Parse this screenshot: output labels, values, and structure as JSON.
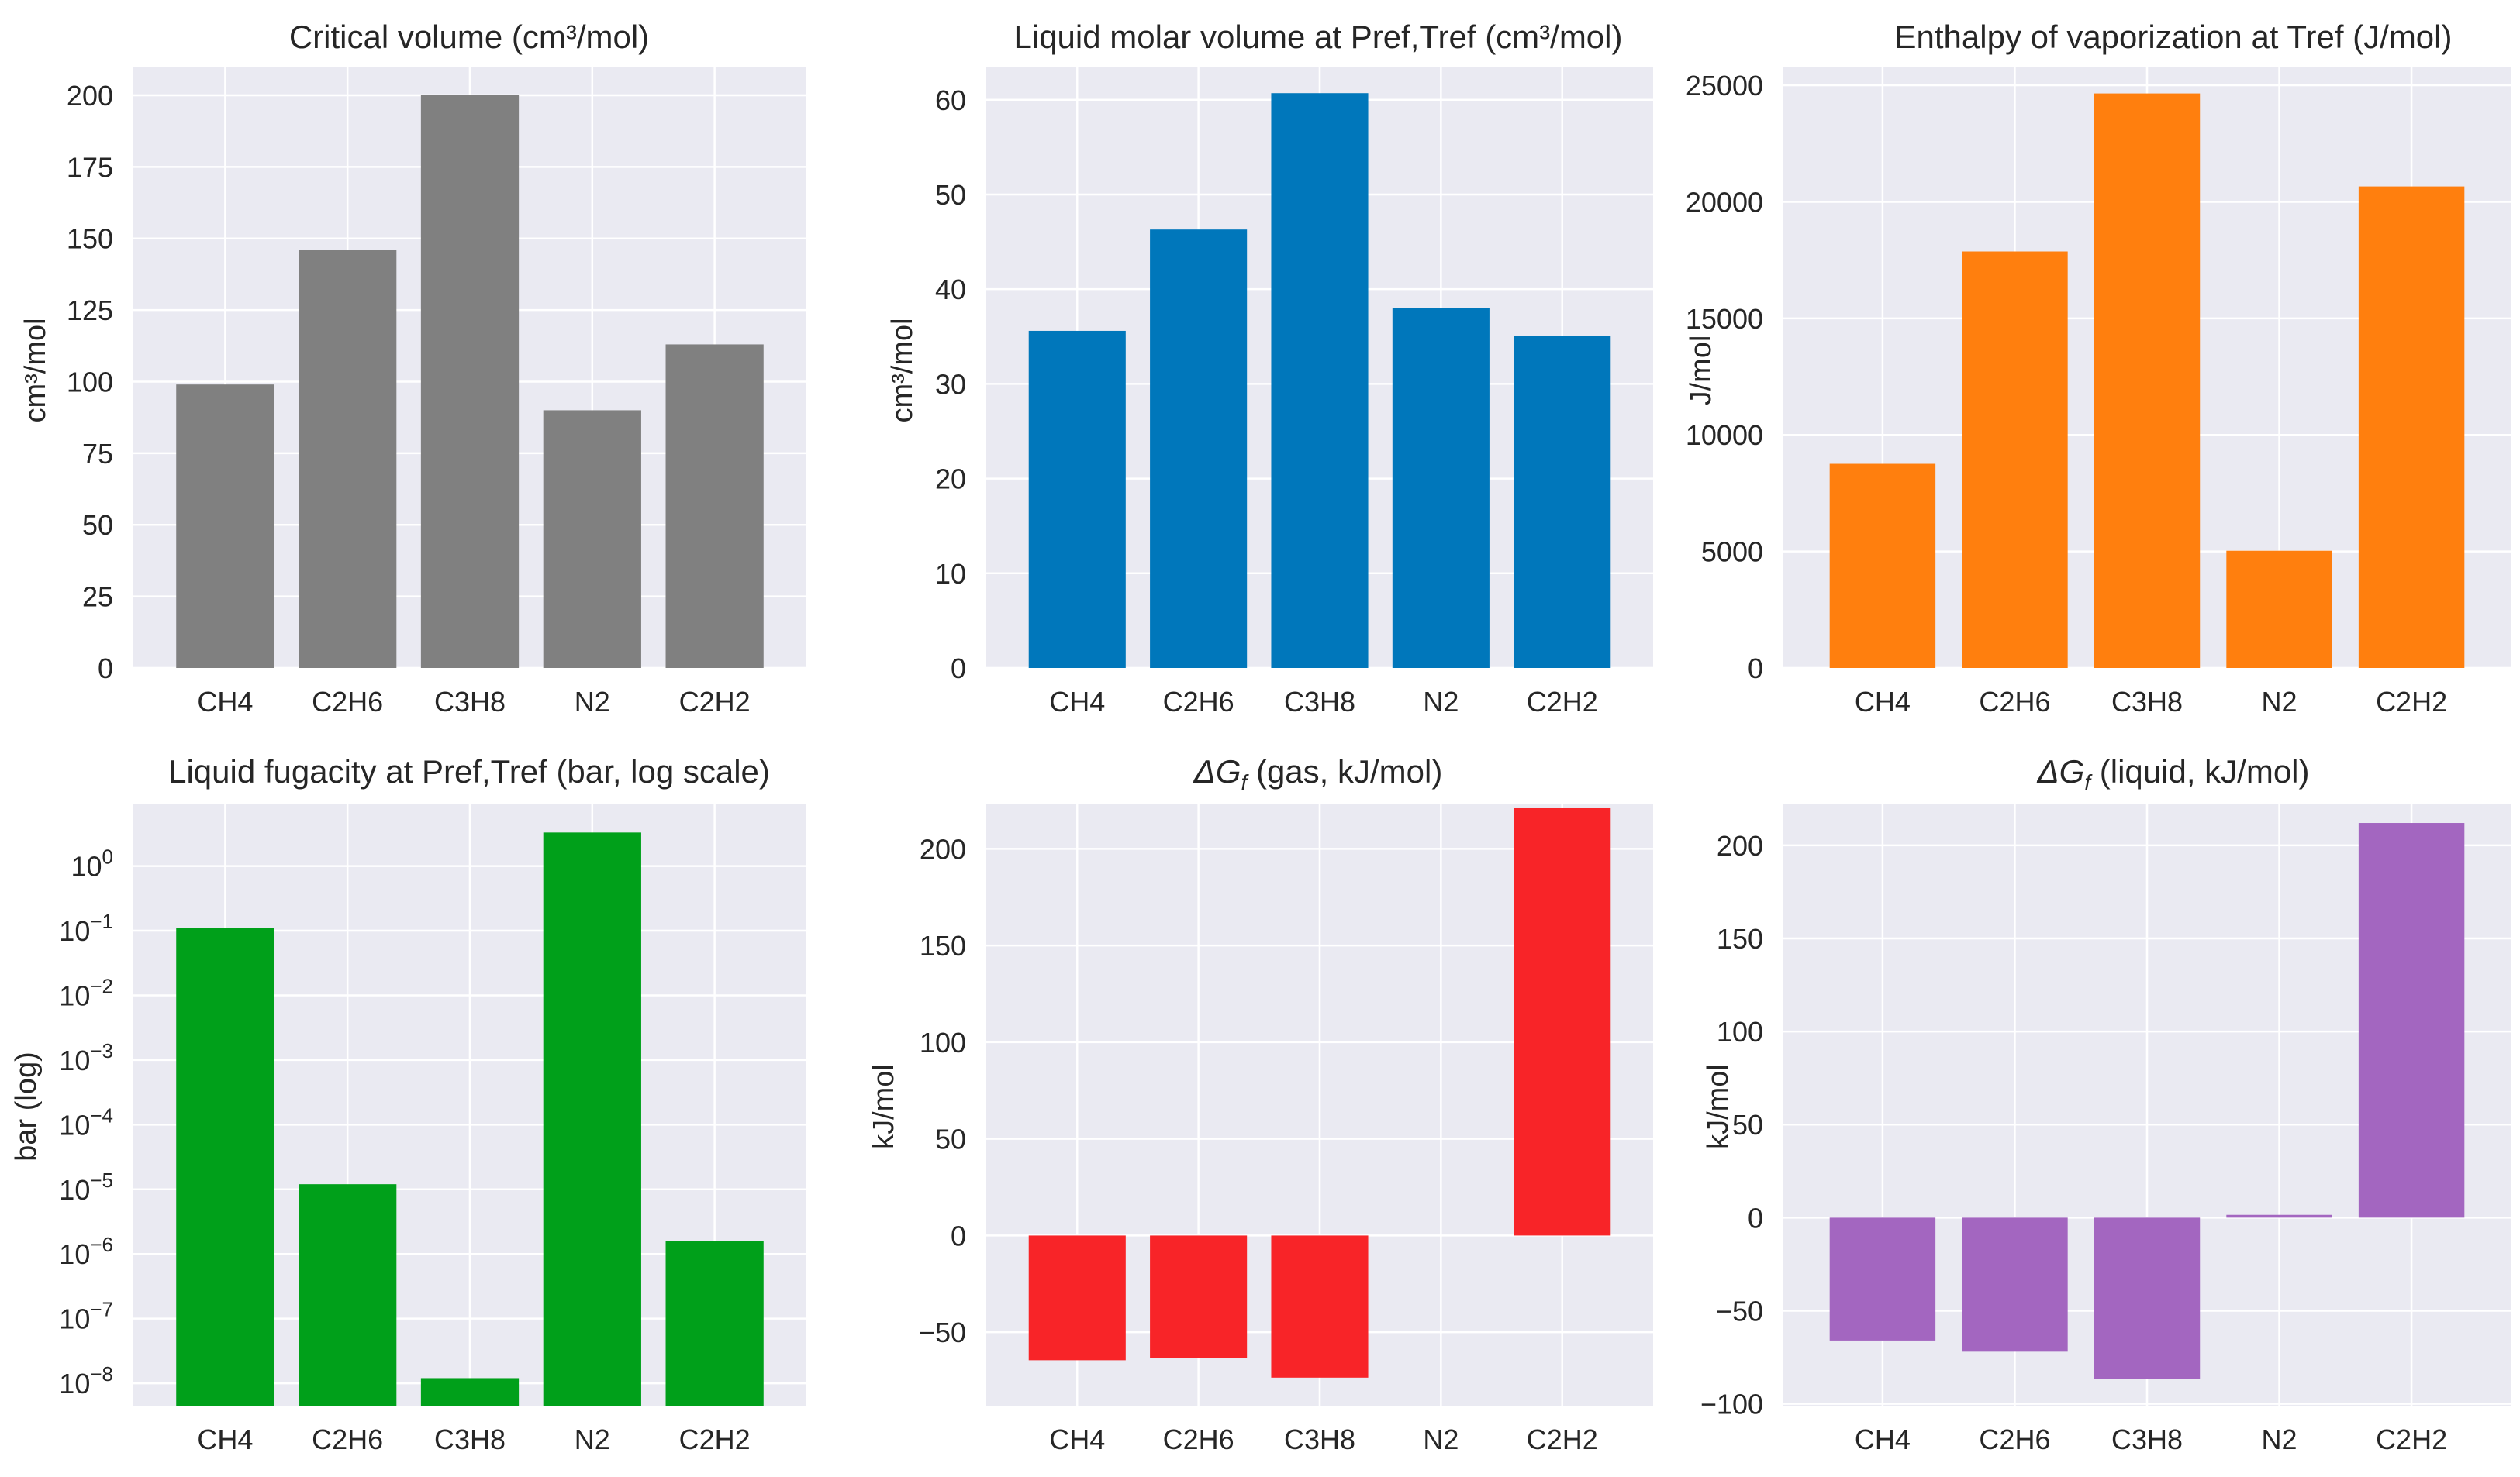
{
  "chart_data": [
    {
      "type": "bar",
      "title": "Critical volume (cm³/mol)",
      "ylabel": "cm³/mol",
      "categories": [
        "CH4",
        "C2H6",
        "C3H8",
        "N2",
        "C2H2"
      ],
      "values": [
        99,
        146,
        200,
        90,
        113
      ],
      "color": "#808080",
      "ylim": [
        0,
        210
      ],
      "yticks": [
        0,
        25,
        50,
        75,
        100,
        125,
        150,
        175,
        200
      ],
      "ytick_labels": [
        "0",
        "25",
        "50",
        "75",
        "100",
        "125",
        "150",
        "175",
        "200"
      ],
      "grid": true
    },
    {
      "type": "bar",
      "title": "Liquid molar volume at Pref,Tref (cm³/mol)",
      "ylabel": "cm³/mol",
      "categories": [
        "CH4",
        "C2H6",
        "C3H8",
        "N2",
        "C2H2"
      ],
      "values": [
        35.6,
        46.3,
        60.7,
        38,
        35.1
      ],
      "color": "#0077bb",
      "ylim": [
        0,
        63.5
      ],
      "yticks": [
        0,
        10,
        20,
        30,
        40,
        50,
        60
      ],
      "ytick_labels": [
        "0",
        "10",
        "20",
        "30",
        "40",
        "50",
        "60"
      ],
      "grid": true
    },
    {
      "type": "bar",
      "title": "Enthalpy of vaporization at Tref (J/mol)",
      "ylabel": "J/mol",
      "categories": [
        "CH4",
        "C2H6",
        "C3H8",
        "N2",
        "C2H2"
      ],
      "values": [
        8760,
        17870,
        24650,
        5030,
        20660
      ],
      "color": "#ff7f0e",
      "ylim": [
        0,
        25800
      ],
      "yticks": [
        0,
        5000,
        10000,
        15000,
        20000,
        25000
      ],
      "ytick_labels": [
        "0",
        "5000",
        "10000",
        "15000",
        "20000",
        "25000"
      ],
      "grid": true
    },
    {
      "type": "bar",
      "scale": "log",
      "title": "Liquid fugacity at Pref,Tref (bar, log scale)",
      "ylabel": "bar (log)",
      "categories": [
        "CH4",
        "C2H6",
        "C3H8",
        "N2",
        "C2H2"
      ],
      "values": [
        0.11,
        1.2e-05,
        1.2e-08,
        3.3,
        1.6e-06
      ],
      "color": "#00a01a",
      "ylim": [
        4.5e-09,
        9
      ],
      "ytick_exponents": [
        0,
        -1,
        -2,
        -3,
        -4,
        -5,
        -6,
        -7,
        -8
      ],
      "ytick_base": "10",
      "grid": true
    },
    {
      "type": "bar",
      "title_prefix": "ΔG",
      "title_sub": "f",
      "title_suffix": " (gas, kJ/mol)",
      "ylabel": "kJ/mol",
      "categories": [
        "CH4",
        "C2H6",
        "C3H8",
        "N2",
        "C2H2"
      ],
      "values": [
        -64.5,
        -63.5,
        -73.5,
        0,
        221
      ],
      "color": "#f82428",
      "ylim": [
        -88,
        223
      ],
      "yticks": [
        -50,
        0,
        50,
        100,
        150,
        200
      ],
      "ytick_labels": [
        "−50",
        "0",
        "50",
        "100",
        "150",
        "200"
      ],
      "grid": true
    },
    {
      "type": "bar",
      "title_prefix": "ΔG",
      "title_sub": "f",
      "title_suffix": " (liquid, kJ/mol)",
      "ylabel": "kJ/mol",
      "categories": [
        "CH4",
        "C2H6",
        "C3H8",
        "N2",
        "C2H2"
      ],
      "values": [
        -66,
        -72,
        -86.5,
        1.5,
        212
      ],
      "color": "#a366c0",
      "ylim": [
        -101,
        222
      ],
      "yticks": [
        -100,
        -50,
        0,
        50,
        100,
        150,
        200
      ],
      "ytick_labels": [
        "−100",
        "−50",
        "0",
        "50",
        "100",
        "150",
        "200"
      ],
      "grid": true
    }
  ]
}
